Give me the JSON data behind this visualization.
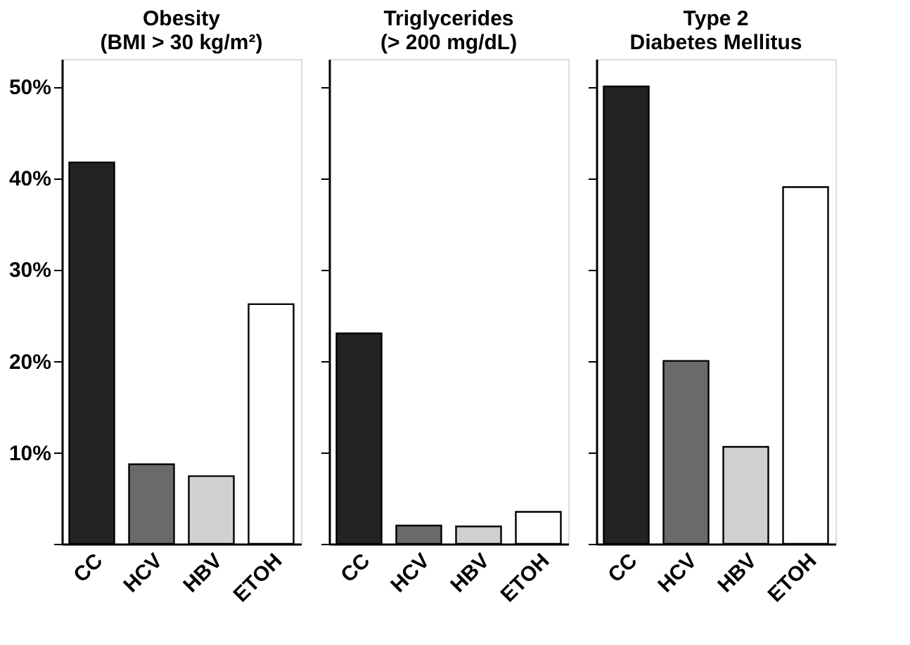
{
  "chart_data": [
    {
      "type": "bar",
      "title": "Obesity\n(BMI > 30 kg/m²)",
      "categories": [
        "CC",
        "HCV",
        "HBV",
        "ETOH"
      ],
      "values": [
        41.7,
        8.7,
        7.4,
        26.2
      ],
      "colors": [
        "#232323",
        "#6a6a6a",
        "#d0d0d0",
        "#ffffff"
      ],
      "ylim": [
        0,
        53
      ],
      "yticks": [
        {
          "value": 0,
          "label": null
        },
        {
          "value": 10,
          "label": "10%"
        },
        {
          "value": 20,
          "label": "20%"
        },
        {
          "value": 30,
          "label": "30%"
        },
        {
          "value": 40,
          "label": "40%"
        },
        {
          "value": 50,
          "label": "50%"
        }
      ],
      "grid": false
    },
    {
      "type": "bar",
      "title": "Triglycerides\n(> 200 mg/dL)",
      "categories": [
        "CC",
        "HCV",
        "HBV",
        "ETOH"
      ],
      "values": [
        23,
        2,
        1.9,
        3.5
      ],
      "colors": [
        "#232323",
        "#6a6a6a",
        "#d0d0d0",
        "#ffffff"
      ],
      "ylim": [
        0,
        53
      ],
      "yticks": [
        0,
        10,
        20,
        30,
        40,
        50
      ],
      "tick_labels": "x",
      "grid": false
    },
    {
      "type": "bar",
      "title": "Type 2\nDiabetes Mellitus",
      "categories": [
        "CC",
        "HCV",
        "HBV",
        "ETOH"
      ],
      "values": [
        50,
        20,
        10.6,
        39
      ],
      "colors": [
        "#232323",
        "#6a6a6a",
        "#d0d0d0",
        "#ffffff"
      ],
      "ylim": [
        0,
        53
      ],
      "yticks": [
        0,
        10,
        20,
        30,
        40,
        50
      ],
      "tick_labels": "x",
      "grid": false
    }
  ]
}
